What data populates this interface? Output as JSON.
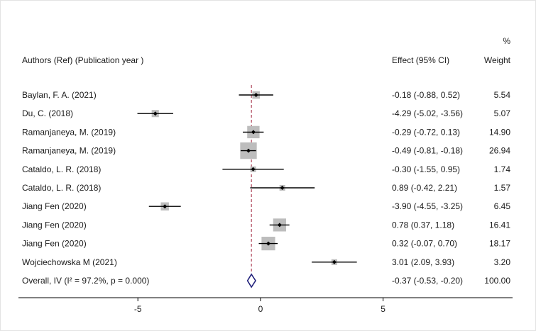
{
  "chart_data": {
    "type": "forest",
    "headers": {
      "study": "Authors (Ref) (Publication year )",
      "effect": "Effect (95% CI)",
      "weight_top": "%",
      "weight": "Weight"
    },
    "studies": [
      {
        "label": "Baylan, F. A. (2021)",
        "effect": -0.18,
        "lower": -0.88,
        "upper": 0.52,
        "weight": 5.54,
        "ci_text": "-0.18 (-0.88, 0.52)",
        "weight_text": "5.54"
      },
      {
        "label": "Du, C. (2018)",
        "effect": -4.29,
        "lower": -5.02,
        "upper": -3.56,
        "weight": 5.07,
        "ci_text": "-4.29 (-5.02, -3.56)",
        "weight_text": "5.07"
      },
      {
        "label": "Ramanjaneya, M. (2019)",
        "effect": -0.29,
        "lower": -0.72,
        "upper": 0.13,
        "weight": 14.9,
        "ci_text": "-0.29 (-0.72, 0.13)",
        "weight_text": "14.90"
      },
      {
        "label": "Ramanjaneya, M. (2019)",
        "effect": -0.49,
        "lower": -0.81,
        "upper": -0.18,
        "weight": 26.94,
        "ci_text": "-0.49 (-0.81, -0.18)",
        "weight_text": "26.94"
      },
      {
        "label": "Cataldo, L. R. (2018)",
        "effect": -0.3,
        "lower": -1.55,
        "upper": 0.95,
        "weight": 1.74,
        "ci_text": "-0.30 (-1.55, 0.95)",
        "weight_text": "1.74"
      },
      {
        "label": "Cataldo, L. R. (2018)",
        "effect": 0.89,
        "lower": -0.42,
        "upper": 2.21,
        "weight": 1.57,
        "ci_text": "0.89 (-0.42, 2.21)",
        "weight_text": "1.57"
      },
      {
        "label": "Jiang Fen (2020)",
        "effect": -3.9,
        "lower": -4.55,
        "upper": -3.25,
        "weight": 6.45,
        "ci_text": "-3.90 (-4.55, -3.25)",
        "weight_text": "6.45"
      },
      {
        "label": "Jiang Fen (2020)",
        "effect": 0.78,
        "lower": 0.37,
        "upper": 1.18,
        "weight": 16.41,
        "ci_text": "0.78 (0.37, 1.18)",
        "weight_text": "16.41"
      },
      {
        "label": "Jiang Fen (2020)",
        "effect": 0.32,
        "lower": -0.07,
        "upper": 0.7,
        "weight": 18.17,
        "ci_text": "0.32 (-0.07, 0.70)",
        "weight_text": "18.17"
      },
      {
        "label": "Wojciechowska M (2021)",
        "effect": 3.01,
        "lower": 2.09,
        "upper": 3.93,
        "weight": 3.2,
        "ci_text": "3.01 (2.09, 3.93)",
        "weight_text": "3.20"
      }
    ],
    "overall": {
      "label": "Overall, IV (I² = 97.2%, p = 0.000)",
      "effect": -0.37,
      "lower": -0.53,
      "upper": -0.2,
      "weight": 100.0,
      "ci_text": "-0.37 (-0.53, -0.20)",
      "weight_text": "100.00"
    },
    "x_axis": {
      "ticks": [
        -5,
        0,
        5
      ],
      "tick_labels": [
        "-5",
        "0",
        "5"
      ],
      "range": [
        -9.87,
        10.28
      ]
    },
    "colors": {
      "box": "#bdbdbd",
      "ci_line": "#000000",
      "reference_line": "#a0223a",
      "diamond": "#1f1f7a",
      "background": "#ffffff",
      "border": "#e3e3e3"
    }
  }
}
